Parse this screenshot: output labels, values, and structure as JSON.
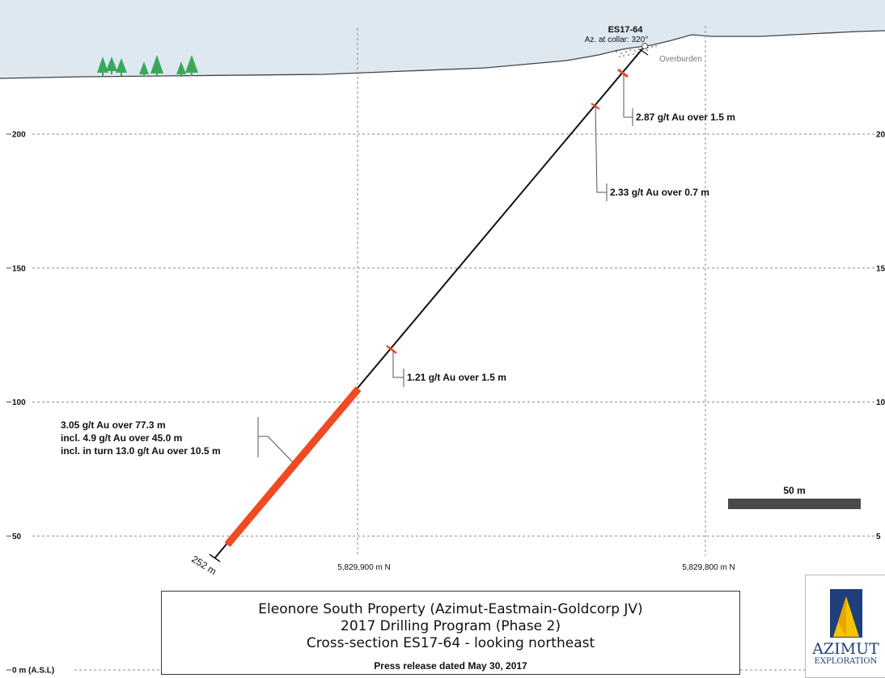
{
  "section": {
    "hole_id": "ES17-64",
    "azimuth_label": "Az. at collar: 320°",
    "overburden_label": "Overburden",
    "end_depth_label": "252 m",
    "y_ticks": [
      {
        "value": 200,
        "label": "200",
        "right_label": "20"
      },
      {
        "value": 150,
        "label": "150",
        "right_label": "15"
      },
      {
        "value": 100,
        "label": "100",
        "right_label": "10"
      },
      {
        "value": 50,
        "label": "50",
        "right_label": "5"
      },
      {
        "value": 0,
        "label": "0 m (A.S.L)",
        "right_label": ""
      }
    ],
    "x_grid_labels": [
      "5,829,900 m N",
      "5,829,800 m N"
    ],
    "intercepts": [
      {
        "lines": [
          "2.87 g/t Au over 1.5 m"
        ]
      },
      {
        "lines": [
          "2.33 g/t Au over 0.7 m"
        ]
      },
      {
        "lines": [
          "1.21 g/t Au over 1.5 m"
        ]
      },
      {
        "lines": [
          "3.05 g/t Au over 77.3 m",
          "incl. 4.9 g/t Au over 45.0 m",
          "incl. in turn 13.0 g/t Au over 10.5 m"
        ]
      }
    ],
    "scale_bar_label": "50 m",
    "colors": {
      "sky": "#dde8f1",
      "drillhole": "#111111",
      "mineralization": "#f04a22",
      "grid": "#8a8a8a",
      "scale_bar": "#4a4a4a",
      "trees": "#3aa85a"
    }
  },
  "title_block": {
    "line1": "Eleonore South Property (Azimut-Eastmain-Goldcorp JV)",
    "line2": "2017 Drilling Program (Phase 2)",
    "line3": "Cross-section ES17-64 - looking northeast",
    "press_release": "Press release dated May 30, 2017"
  },
  "logo": {
    "word1": "AZIMUT",
    "word2": "EXPLORATION",
    "icon": "azimut-triangle-logo"
  }
}
